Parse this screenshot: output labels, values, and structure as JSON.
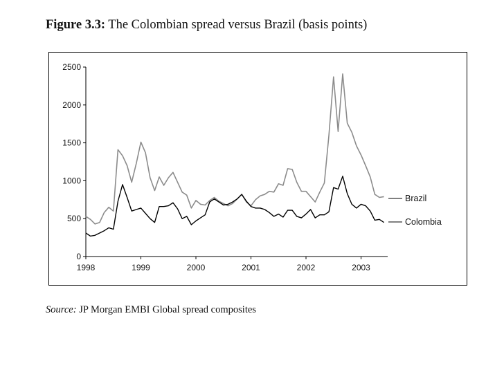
{
  "figure": {
    "label": "Figure 3.3:",
    "caption": "The Colombian spread versus Brazil (basis points)"
  },
  "source": {
    "label": "Source:",
    "text": "JP Morgan EMBI Global spread composites"
  },
  "chart_data": {
    "type": "line",
    "title": "The Colombian spread versus Brazil (basis points)",
    "xlabel": "",
    "ylabel": "basis points",
    "xlim": [
      1998,
      2003.6
    ],
    "ylim": [
      0,
      2500
    ],
    "x_ticks": [
      "1998",
      "1999",
      "2000",
      "2001",
      "2002",
      "2003"
    ],
    "y_ticks": [
      "0",
      "500",
      "1000",
      "1500",
      "2000",
      "2500"
    ],
    "grid": false,
    "legend": "right",
    "x_start": 1998.0,
    "x_step_months": 1,
    "series": [
      {
        "name": "Brazil",
        "color": "#8c8c8c",
        "values": [
          530,
          490,
          430,
          450,
          580,
          650,
          600,
          1410,
          1330,
          1200,
          980,
          1230,
          1510,
          1370,
          1040,
          870,
          1050,
          940,
          1040,
          1110,
          980,
          850,
          810,
          640,
          740,
          690,
          680,
          740,
          780,
          730,
          700,
          670,
          700,
          760,
          820,
          720,
          670,
          750,
          800,
          820,
          860,
          850,
          960,
          940,
          1160,
          1150,
          980,
          860,
          860,
          790,
          720,
          850,
          970,
          1600,
          2370,
          1650,
          2410,
          1760,
          1640,
          1460,
          1340,
          1200,
          1050,
          820,
          780,
          790
        ]
      },
      {
        "name": "Colombia",
        "color": "#000000",
        "values": [
          310,
          270,
          280,
          310,
          340,
          380,
          360,
          730,
          950,
          780,
          600,
          620,
          640,
          570,
          500,
          450,
          660,
          660,
          670,
          710,
          630,
          500,
          530,
          420,
          470,
          510,
          550,
          720,
          760,
          720,
          680,
          690,
          720,
          760,
          820,
          730,
          660,
          640,
          640,
          620,
          580,
          530,
          560,
          520,
          610,
          610,
          530,
          510,
          560,
          620,
          510,
          550,
          550,
          590,
          910,
          890,
          1060,
          830,
          690,
          640,
          690,
          670,
          600,
          480,
          490,
          450
        ]
      }
    ]
  }
}
